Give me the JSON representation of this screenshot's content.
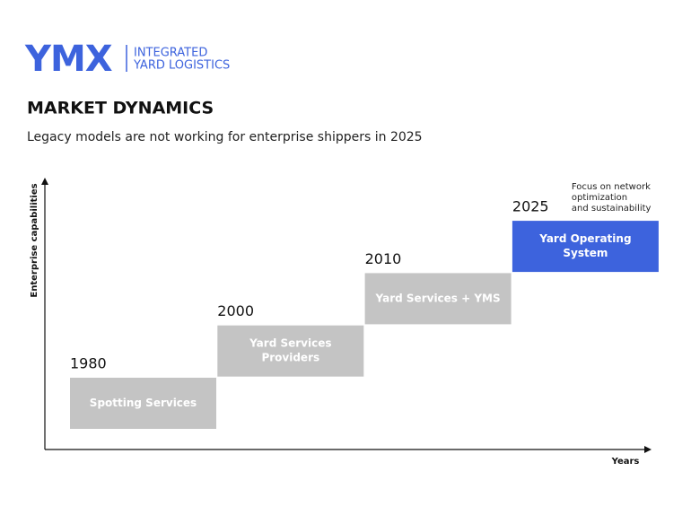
{
  "logo": {
    "mark": "YMX",
    "lines": [
      "INTEGRATED",
      "YARD LOGISTICS"
    ]
  },
  "header": {
    "title": "MARKET DYNAMICS",
    "subtitle": "Legacy models are not working for enterprise shippers in 2025"
  },
  "axes": {
    "y_label": "Enterprise capabilities",
    "x_label": "Years"
  },
  "steps": [
    {
      "year": "1980",
      "label_lines": [
        "Spotting Services"
      ]
    },
    {
      "year": "2000",
      "label_lines": [
        "Yard Services",
        "Providers"
      ]
    },
    {
      "year": "2010",
      "label_lines": [
        "Yard Services + YMS"
      ]
    },
    {
      "year": "2025",
      "label_lines": [
        "Yard Operating",
        "System"
      ],
      "highlight": true,
      "note_lines": [
        "Focus on network",
        "optimization",
        "and sustainability"
      ]
    }
  ]
}
